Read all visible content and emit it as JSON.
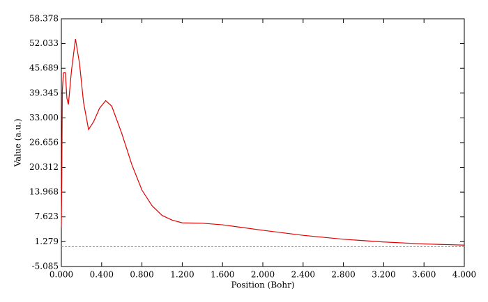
{
  "chart_data": {
    "type": "line",
    "x_label": "Position (Bohr)",
    "y_label": "Value (a.u.)",
    "x": [
      0.0,
      0.005,
      0.01,
      0.02,
      0.04,
      0.055,
      0.07,
      0.1,
      0.14,
      0.18,
      0.22,
      0.27,
      0.32,
      0.38,
      0.44,
      0.5,
      0.6,
      0.7,
      0.8,
      0.9,
      1.0,
      1.1,
      1.2,
      1.4,
      1.6,
      1.8,
      2.0,
      2.4,
      2.8,
      3.2,
      3.6,
      4.0
    ],
    "series": [
      {
        "color": "#e00000",
        "values": [
          5,
          20,
          40,
          44.5,
          44.6,
          38,
          36.4,
          45,
          53.2,
          47,
          37,
          30,
          32,
          35.5,
          37.4,
          36,
          29,
          21,
          14.5,
          10.5,
          8,
          6.8,
          6.1,
          6.0,
          5.6,
          4.9,
          4.2,
          2.9,
          1.9,
          1.2,
          0.7,
          0.4
        ]
      }
    ],
    "reference_line": 0,
    "xlim": [
      0,
      4
    ],
    "xticks": [
      {
        "value": 0,
        "label": "0.000"
      },
      {
        "value": 0.4,
        "label": "0.400"
      },
      {
        "value": 0.8,
        "label": "0.800"
      },
      {
        "value": 1.2,
        "label": "1.200"
      },
      {
        "value": 1.6,
        "label": "1.600"
      },
      {
        "value": 2,
        "label": "2.000"
      },
      {
        "value": 2.4,
        "label": "2.400"
      },
      {
        "value": 2.8,
        "label": "2.800"
      },
      {
        "value": 3.2,
        "label": "3.200"
      },
      {
        "value": 3.6,
        "label": "3.600"
      },
      {
        "value": 4,
        "label": "4.000"
      }
    ],
    "ylim": [
      -5.085,
      58.378
    ],
    "yticks": [
      -5.085,
      1.279,
      7.623,
      13.968,
      20.312,
      26.656,
      {
        "value": 33,
        "label": "33.000"
      },
      39.345,
      45.689,
      52.033,
      58.378
    ]
  }
}
